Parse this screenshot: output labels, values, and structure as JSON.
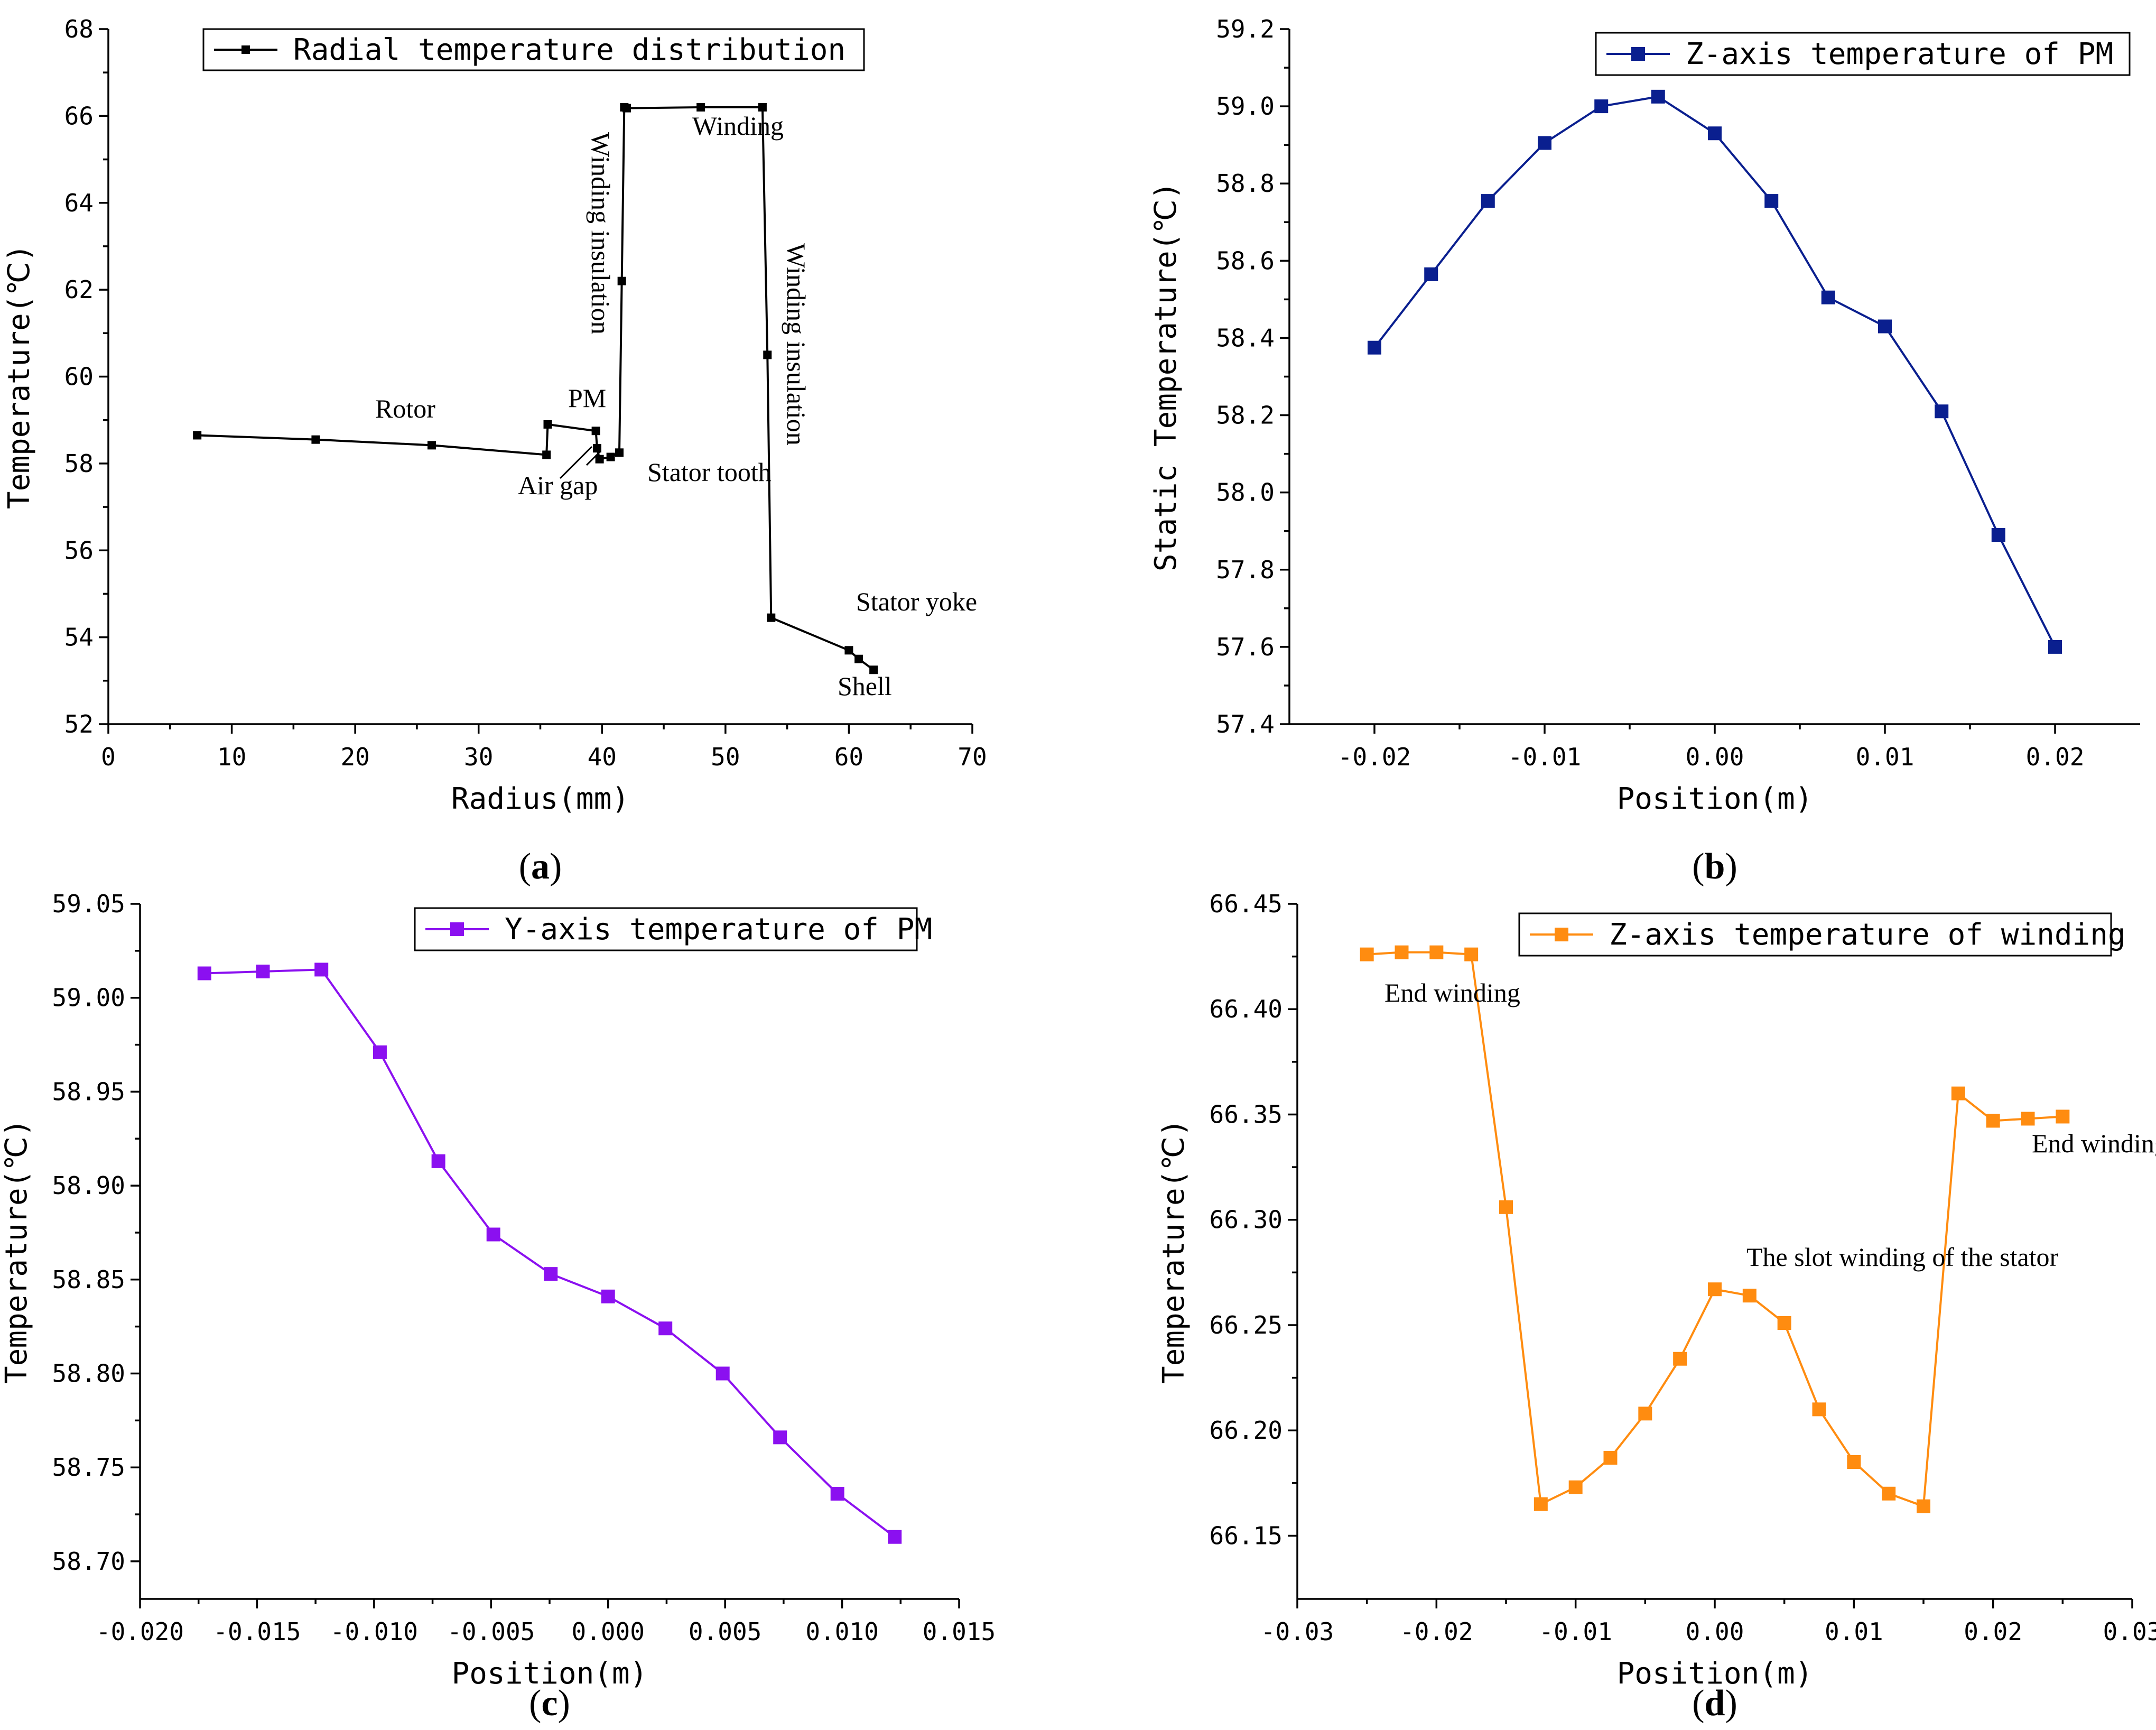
{
  "chart_data": [
    {
      "id": "a",
      "type": "line",
      "panel_label": "a",
      "xlabel": "Radius(mm)",
      "ylabel": "Temperature(℃)",
      "xlim": [
        0,
        70
      ],
      "ylim": [
        52,
        68
      ],
      "xticks": [
        0,
        10,
        20,
        30,
        40,
        50,
        60,
        70
      ],
      "yticks": [
        52,
        54,
        56,
        58,
        60,
        62,
        64,
        66,
        68
      ],
      "legend": {
        "label": "Radial temperature distribution",
        "position": "top"
      },
      "series": [
        {
          "name": "Radial temperature distribution",
          "color": "#000000",
          "marker": "small-square",
          "x": [
            7.2,
            16.8,
            26.2,
            35.5,
            35.6,
            39.5,
            39.6,
            39.8,
            40.7,
            41.4,
            41.6,
            41.8,
            42.0,
            48.0,
            53.0,
            53.4,
            53.7,
            60.0,
            60.8,
            62.0
          ],
          "y": [
            58.65,
            58.55,
            58.42,
            58.2,
            58.9,
            58.75,
            58.35,
            58.1,
            58.15,
            58.25,
            62.2,
            66.2,
            66.18,
            66.2,
            66.2,
            60.5,
            54.45,
            53.7,
            53.5,
            53.25
          ]
        }
      ],
      "annotations": [
        "Rotor",
        "PM",
        "Air gap",
        "Stator tooth",
        "Winding insulation",
        "Winding",
        "Winding insulation",
        "Stator yoke",
        "Shell"
      ]
    },
    {
      "id": "b",
      "type": "line",
      "panel_label": "b",
      "xlabel": "Position(m)",
      "ylabel": "Static Temperature(℃)",
      "xlim": [
        -0.025,
        0.025
      ],
      "ylim": [
        57.4,
        59.2
      ],
      "xticks": [
        -0.02,
        -0.01,
        0.0,
        0.01,
        0.02
      ],
      "xtick_labels": [
        "-0.02",
        "-0.01",
        "0.00",
        "0.01",
        "0.02"
      ],
      "yticks": [
        57.4,
        57.6,
        57.8,
        58.0,
        58.2,
        58.4,
        58.6,
        58.8,
        59.0,
        59.2
      ],
      "ytick_labels": [
        "57.4",
        "57.6",
        "57.8",
        "58.0",
        "58.2",
        "58.4",
        "58.6",
        "58.8",
        "59.0",
        "59.2"
      ],
      "legend": {
        "label": "Z-axis temperature of PM",
        "position": "top-right"
      },
      "series": [
        {
          "name": "Z-axis temperature of PM",
          "color": "#0a1f8f",
          "marker": "square",
          "x": [
            -0.02,
            -0.01667,
            -0.01333,
            -0.01,
            -0.00667,
            -0.00333,
            0.0,
            0.00333,
            0.00667,
            0.01,
            0.01333,
            0.01667,
            0.02
          ],
          "y": [
            58.375,
            58.565,
            58.755,
            58.905,
            59.0,
            59.025,
            58.93,
            58.755,
            58.505,
            58.43,
            58.21,
            57.89,
            57.6
          ]
        }
      ]
    },
    {
      "id": "c",
      "type": "line",
      "panel_label": "c",
      "xlabel": "Position(m)",
      "ylabel": "Temperature(℃)",
      "xlim": [
        -0.02,
        0.015
      ],
      "ylim": [
        58.68,
        59.05
      ],
      "xticks": [
        -0.02,
        -0.015,
        -0.01,
        -0.005,
        0.0,
        0.005,
        0.01,
        0.015
      ],
      "xtick_labels": [
        "-0.020",
        "-0.015",
        "-0.010",
        "-0.005",
        "0.000",
        "0.005",
        "0.010",
        "0.015"
      ],
      "yticks": [
        58.7,
        58.75,
        58.8,
        58.85,
        58.9,
        58.95,
        59.0,
        59.05
      ],
      "ytick_labels": [
        "58.70",
        "58.75",
        "58.80",
        "58.85",
        "58.90",
        "58.95",
        "59.00",
        "59.05"
      ],
      "legend": {
        "label": "Y-axis temperature of PM",
        "position": "top-right"
      },
      "series": [
        {
          "name": "Y-axis temperature of PM",
          "color": "#8b10f0",
          "marker": "square",
          "x": [
            -0.01725,
            -0.01475,
            -0.01225,
            -0.00975,
            -0.00725,
            -0.0049,
            -0.00245,
            0.0,
            0.00245,
            0.0049,
            0.00735,
            0.0098,
            0.01225
          ],
          "y": [
            59.013,
            59.014,
            59.015,
            58.971,
            58.913,
            58.874,
            58.853,
            58.841,
            58.824,
            58.8,
            58.766,
            58.736,
            58.713
          ]
        }
      ]
    },
    {
      "id": "d",
      "type": "line",
      "panel_label": "d",
      "xlabel": "Position(m)",
      "ylabel": "Temperature(℃)",
      "xlim": [
        -0.03,
        0.03
      ],
      "ylim": [
        66.12,
        66.45
      ],
      "xticks": [
        -0.03,
        -0.02,
        -0.01,
        0.0,
        0.01,
        0.02,
        0.03
      ],
      "xtick_labels": [
        "-0.03",
        "-0.02",
        "-0.01",
        "0.00",
        "0.01",
        "0.02",
        "0.03"
      ],
      "yticks": [
        66.15,
        66.2,
        66.25,
        66.3,
        66.35,
        66.4,
        66.45
      ],
      "ytick_labels": [
        "66.15",
        "66.20",
        "66.25",
        "66.30",
        "66.35",
        "66.40",
        "66.45"
      ],
      "legend": {
        "label": "Z-axis temperature of winding",
        "position": "top-right"
      },
      "series": [
        {
          "name": "Z-axis temperature of winding",
          "color": "#ff8c10",
          "marker": "square",
          "x": [
            -0.025,
            -0.0225,
            -0.02,
            -0.0175,
            -0.015,
            -0.0125,
            -0.01,
            -0.0075,
            -0.005,
            -0.0025,
            0.0,
            0.0025,
            0.005,
            0.0075,
            0.01,
            0.0125,
            0.015,
            0.0175,
            0.02,
            0.0225,
            0.025
          ],
          "y": [
            66.426,
            66.427,
            66.427,
            66.426,
            66.306,
            66.165,
            66.173,
            66.187,
            66.208,
            66.234,
            66.267,
            66.264,
            66.251,
            66.21,
            66.185,
            66.17,
            66.164,
            66.36,
            66.347,
            66.348,
            66.349
          ]
        }
      ],
      "annotations": [
        "End winding",
        "End winding",
        "The slot winding of the stator"
      ]
    }
  ]
}
